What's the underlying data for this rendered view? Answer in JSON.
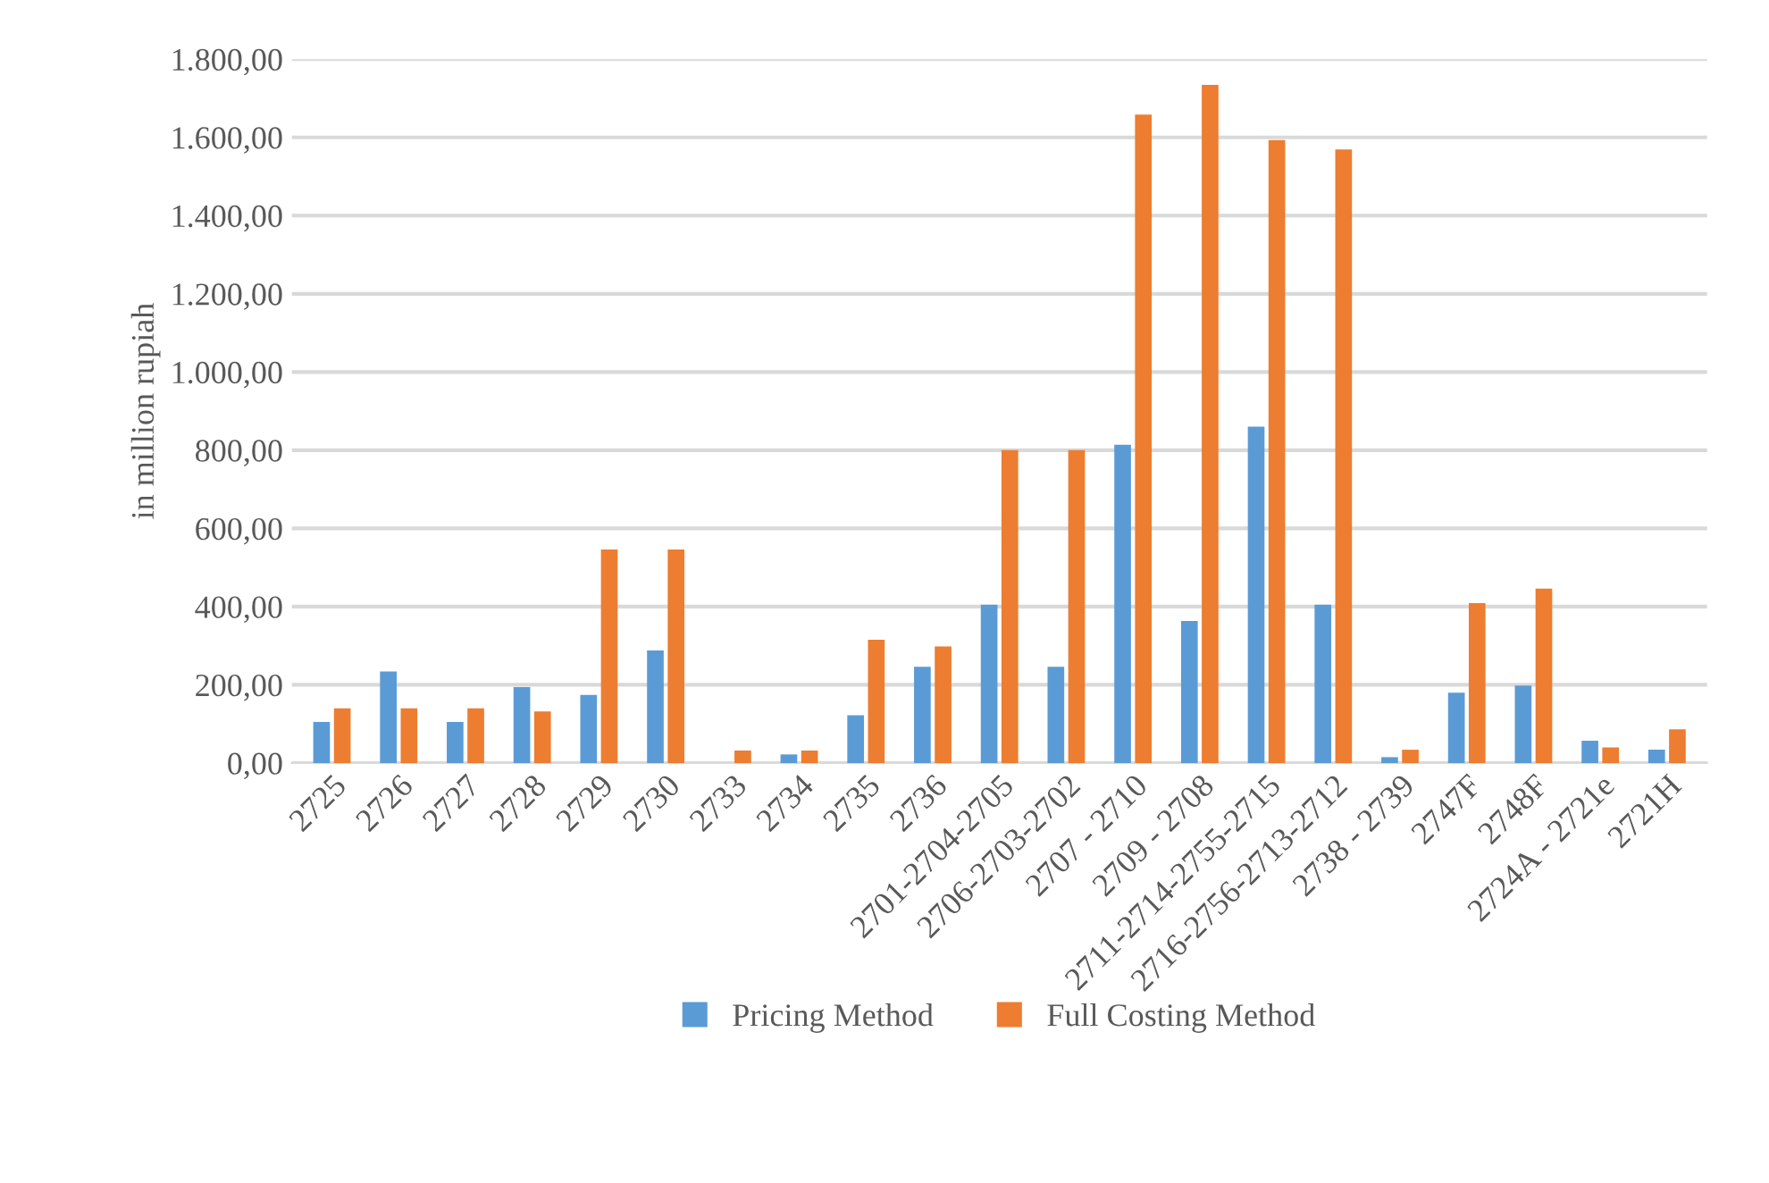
{
  "chart_data": {
    "type": "bar",
    "ylabel": "in million rupiah",
    "categories": [
      "2725",
      "2726",
      "2727",
      "2728",
      "2729",
      "2730",
      "2733",
      "2734",
      "2735",
      "2736",
      "2701-2704-2705",
      "2706-2703-2702",
      "2707 - 2710",
      "2709 - 2708",
      "2711-2714-2755-2715",
      "2716-2756-2713-2712",
      "2738 - 2739",
      "2747F",
      "2748F",
      "2724A - 2721e",
      "2721H"
    ],
    "series": [
      {
        "name": "Pricing Method",
        "color": "#5b9bd5",
        "values": [
          105,
          234,
          105,
          194,
          174,
          288,
          0,
          22,
          122,
          246,
          405,
          246,
          814,
          363,
          860,
          405,
          15,
          180,
          198,
          57,
          34
        ]
      },
      {
        "name": "Full Costing Method",
        "color": "#ed7d31",
        "values": [
          140,
          140,
          140,
          132,
          546,
          546,
          32,
          32,
          315,
          298,
          800,
          800,
          1658,
          1734,
          1593,
          1569,
          34,
          409,
          446,
          40,
          86
        ]
      }
    ],
    "ylim": [
      0,
      1800
    ],
    "yticks": [
      {
        "value": 0,
        "label": "0,00"
      },
      {
        "value": 200,
        "label": "200,00"
      },
      {
        "value": 400,
        "label": "400,00"
      },
      {
        "value": 600,
        "label": "600,00"
      },
      {
        "value": 800,
        "label": "800,00"
      },
      {
        "value": 1000,
        "label": "1.000,00"
      },
      {
        "value": 1200,
        "label": "1.200,00"
      },
      {
        "value": 1400,
        "label": "1.400,00"
      },
      {
        "value": 1600,
        "label": "1.600,00"
      },
      {
        "value": 1800,
        "label": "1.800,00"
      }
    ],
    "grid": "y",
    "legend": "bottom"
  }
}
